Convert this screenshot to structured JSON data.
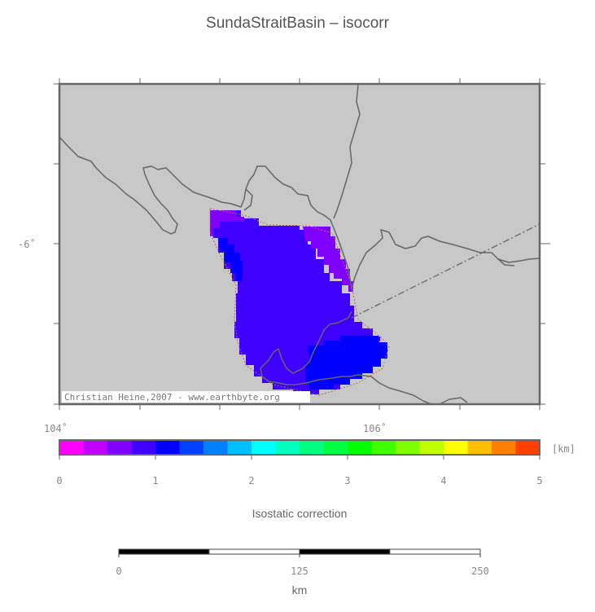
{
  "title": "SundaStraitBasin – isocorr",
  "map": {
    "credit": "Christian Heine,2007 - www.earthbyte.org",
    "lat_labels": [
      "-6˚"
    ],
    "lon_labels": [
      "104˚",
      "106˚"
    ],
    "colors": {
      "land": "#c8c8c8",
      "coast": "#666666",
      "frame": "#555555"
    }
  },
  "colorbar": {
    "unit": "[km]",
    "title": "Isostatic correction",
    "ticks": [
      "0",
      "1",
      "2",
      "3",
      "4",
      "5"
    ],
    "colors": [
      "#ff00ff",
      "#c000ff",
      "#8000ff",
      "#4000ff",
      "#0000ff",
      "#0040ff",
      "#0080ff",
      "#00bfff",
      "#00ffff",
      "#00ffbf",
      "#00ff80",
      "#00ff40",
      "#00ff00",
      "#40ff00",
      "#80ff00",
      "#bfff00",
      "#ffff00",
      "#ffbf00",
      "#ff8000",
      "#ff4000"
    ]
  },
  "scalebar": {
    "ticks": [
      "0",
      "125",
      "250"
    ],
    "unit": "km"
  }
}
